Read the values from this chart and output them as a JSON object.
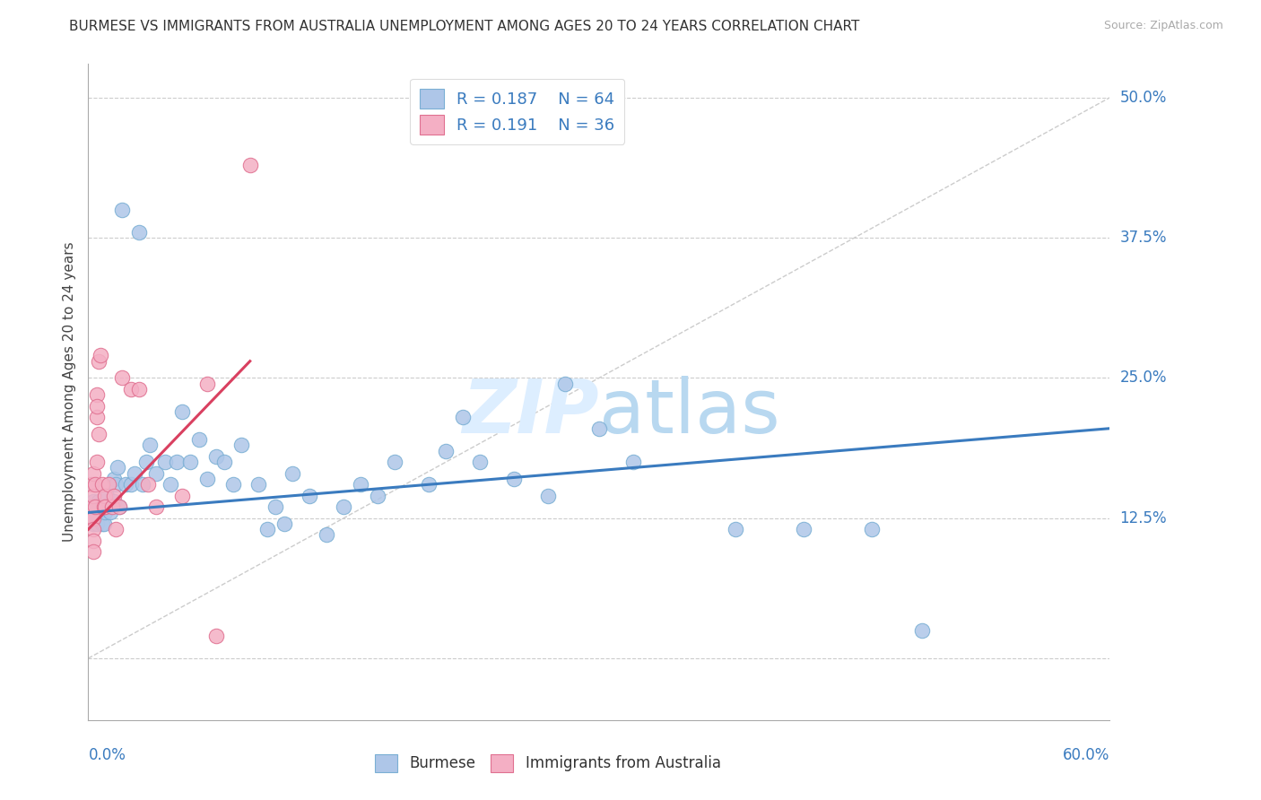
{
  "title": "BURMESE VS IMMIGRANTS FROM AUSTRALIA UNEMPLOYMENT AMONG AGES 20 TO 24 YEARS CORRELATION CHART",
  "source": "Source: ZipAtlas.com",
  "ylabel": "Unemployment Among Ages 20 to 24 years",
  "ytick_vals": [
    0.0,
    0.125,
    0.25,
    0.375,
    0.5
  ],
  "ytick_labels": [
    "",
    "12.5%",
    "25.0%",
    "37.5%",
    "50.0%"
  ],
  "xtick_labels": [
    "0.0%",
    "60.0%"
  ],
  "xlim": [
    0.0,
    0.6
  ],
  "ylim": [
    -0.055,
    0.53
  ],
  "legend1_R": "0.187",
  "legend1_N": "64",
  "legend2_R": "0.191",
  "legend2_N": "36",
  "blue_scatter_color": "#aec6e8",
  "blue_scatter_edge": "#7aafd4",
  "pink_scatter_color": "#f4afc4",
  "pink_scatter_edge": "#e07090",
  "blue_line_color": "#3a7bbf",
  "pink_line_color": "#d94060",
  "ref_line_color": "#cccccc",
  "grid_color": "#cccccc",
  "watermark_color": "#ddeeff",
  "legend_label_color": "#3a7bbf",
  "burmese_x": [
    0.003,
    0.003,
    0.003,
    0.005,
    0.005,
    0.006,
    0.007,
    0.008,
    0.008,
    0.009,
    0.01,
    0.01,
    0.011,
    0.012,
    0.013,
    0.015,
    0.015,
    0.016,
    0.017,
    0.018,
    0.02,
    0.022,
    0.025,
    0.027,
    0.03,
    0.032,
    0.034,
    0.036,
    0.04,
    0.045,
    0.048,
    0.052,
    0.055,
    0.06,
    0.065,
    0.07,
    0.075,
    0.08,
    0.085,
    0.09,
    0.1,
    0.105,
    0.11,
    0.115,
    0.12,
    0.13,
    0.14,
    0.15,
    0.16,
    0.17,
    0.18,
    0.2,
    0.21,
    0.22,
    0.23,
    0.25,
    0.27,
    0.28,
    0.3,
    0.32,
    0.38,
    0.42,
    0.46,
    0.49
  ],
  "burmese_y": [
    0.13,
    0.14,
    0.12,
    0.13,
    0.12,
    0.14,
    0.13,
    0.12,
    0.135,
    0.12,
    0.13,
    0.14,
    0.145,
    0.135,
    0.13,
    0.16,
    0.14,
    0.155,
    0.17,
    0.135,
    0.4,
    0.155,
    0.155,
    0.165,
    0.38,
    0.155,
    0.175,
    0.19,
    0.165,
    0.175,
    0.155,
    0.175,
    0.22,
    0.175,
    0.195,
    0.16,
    0.18,
    0.175,
    0.155,
    0.19,
    0.155,
    0.115,
    0.135,
    0.12,
    0.165,
    0.145,
    0.11,
    0.135,
    0.155,
    0.145,
    0.175,
    0.155,
    0.185,
    0.215,
    0.175,
    0.16,
    0.145,
    0.245,
    0.205,
    0.175,
    0.115,
    0.115,
    0.115,
    0.025
  ],
  "australia_x": [
    0.002,
    0.002,
    0.002,
    0.003,
    0.003,
    0.003,
    0.003,
    0.003,
    0.003,
    0.004,
    0.004,
    0.005,
    0.005,
    0.005,
    0.005,
    0.006,
    0.006,
    0.007,
    0.008,
    0.009,
    0.01,
    0.01,
    0.012,
    0.014,
    0.015,
    0.016,
    0.018,
    0.02,
    0.025,
    0.03,
    0.035,
    0.04,
    0.055,
    0.07,
    0.075,
    0.095
  ],
  "australia_y": [
    0.135,
    0.155,
    0.125,
    0.165,
    0.145,
    0.125,
    0.115,
    0.105,
    0.095,
    0.135,
    0.155,
    0.175,
    0.235,
    0.215,
    0.225,
    0.2,
    0.265,
    0.27,
    0.155,
    0.135,
    0.145,
    0.135,
    0.155,
    0.135,
    0.145,
    0.115,
    0.135,
    0.25,
    0.24,
    0.24,
    0.155,
    0.135,
    0.145,
    0.245,
    0.02,
    0.44
  ],
  "blue_line_x0": 0.0,
  "blue_line_x1": 0.6,
  "blue_line_y0": 0.13,
  "blue_line_y1": 0.205,
  "pink_line_x0": 0.0,
  "pink_line_x1": 0.095,
  "pink_line_y0": 0.115,
  "pink_line_y1": 0.265,
  "ref_line_x0": 0.0,
  "ref_line_x1": 0.6,
  "ref_line_y0": 0.0,
  "ref_line_y1": 0.5
}
